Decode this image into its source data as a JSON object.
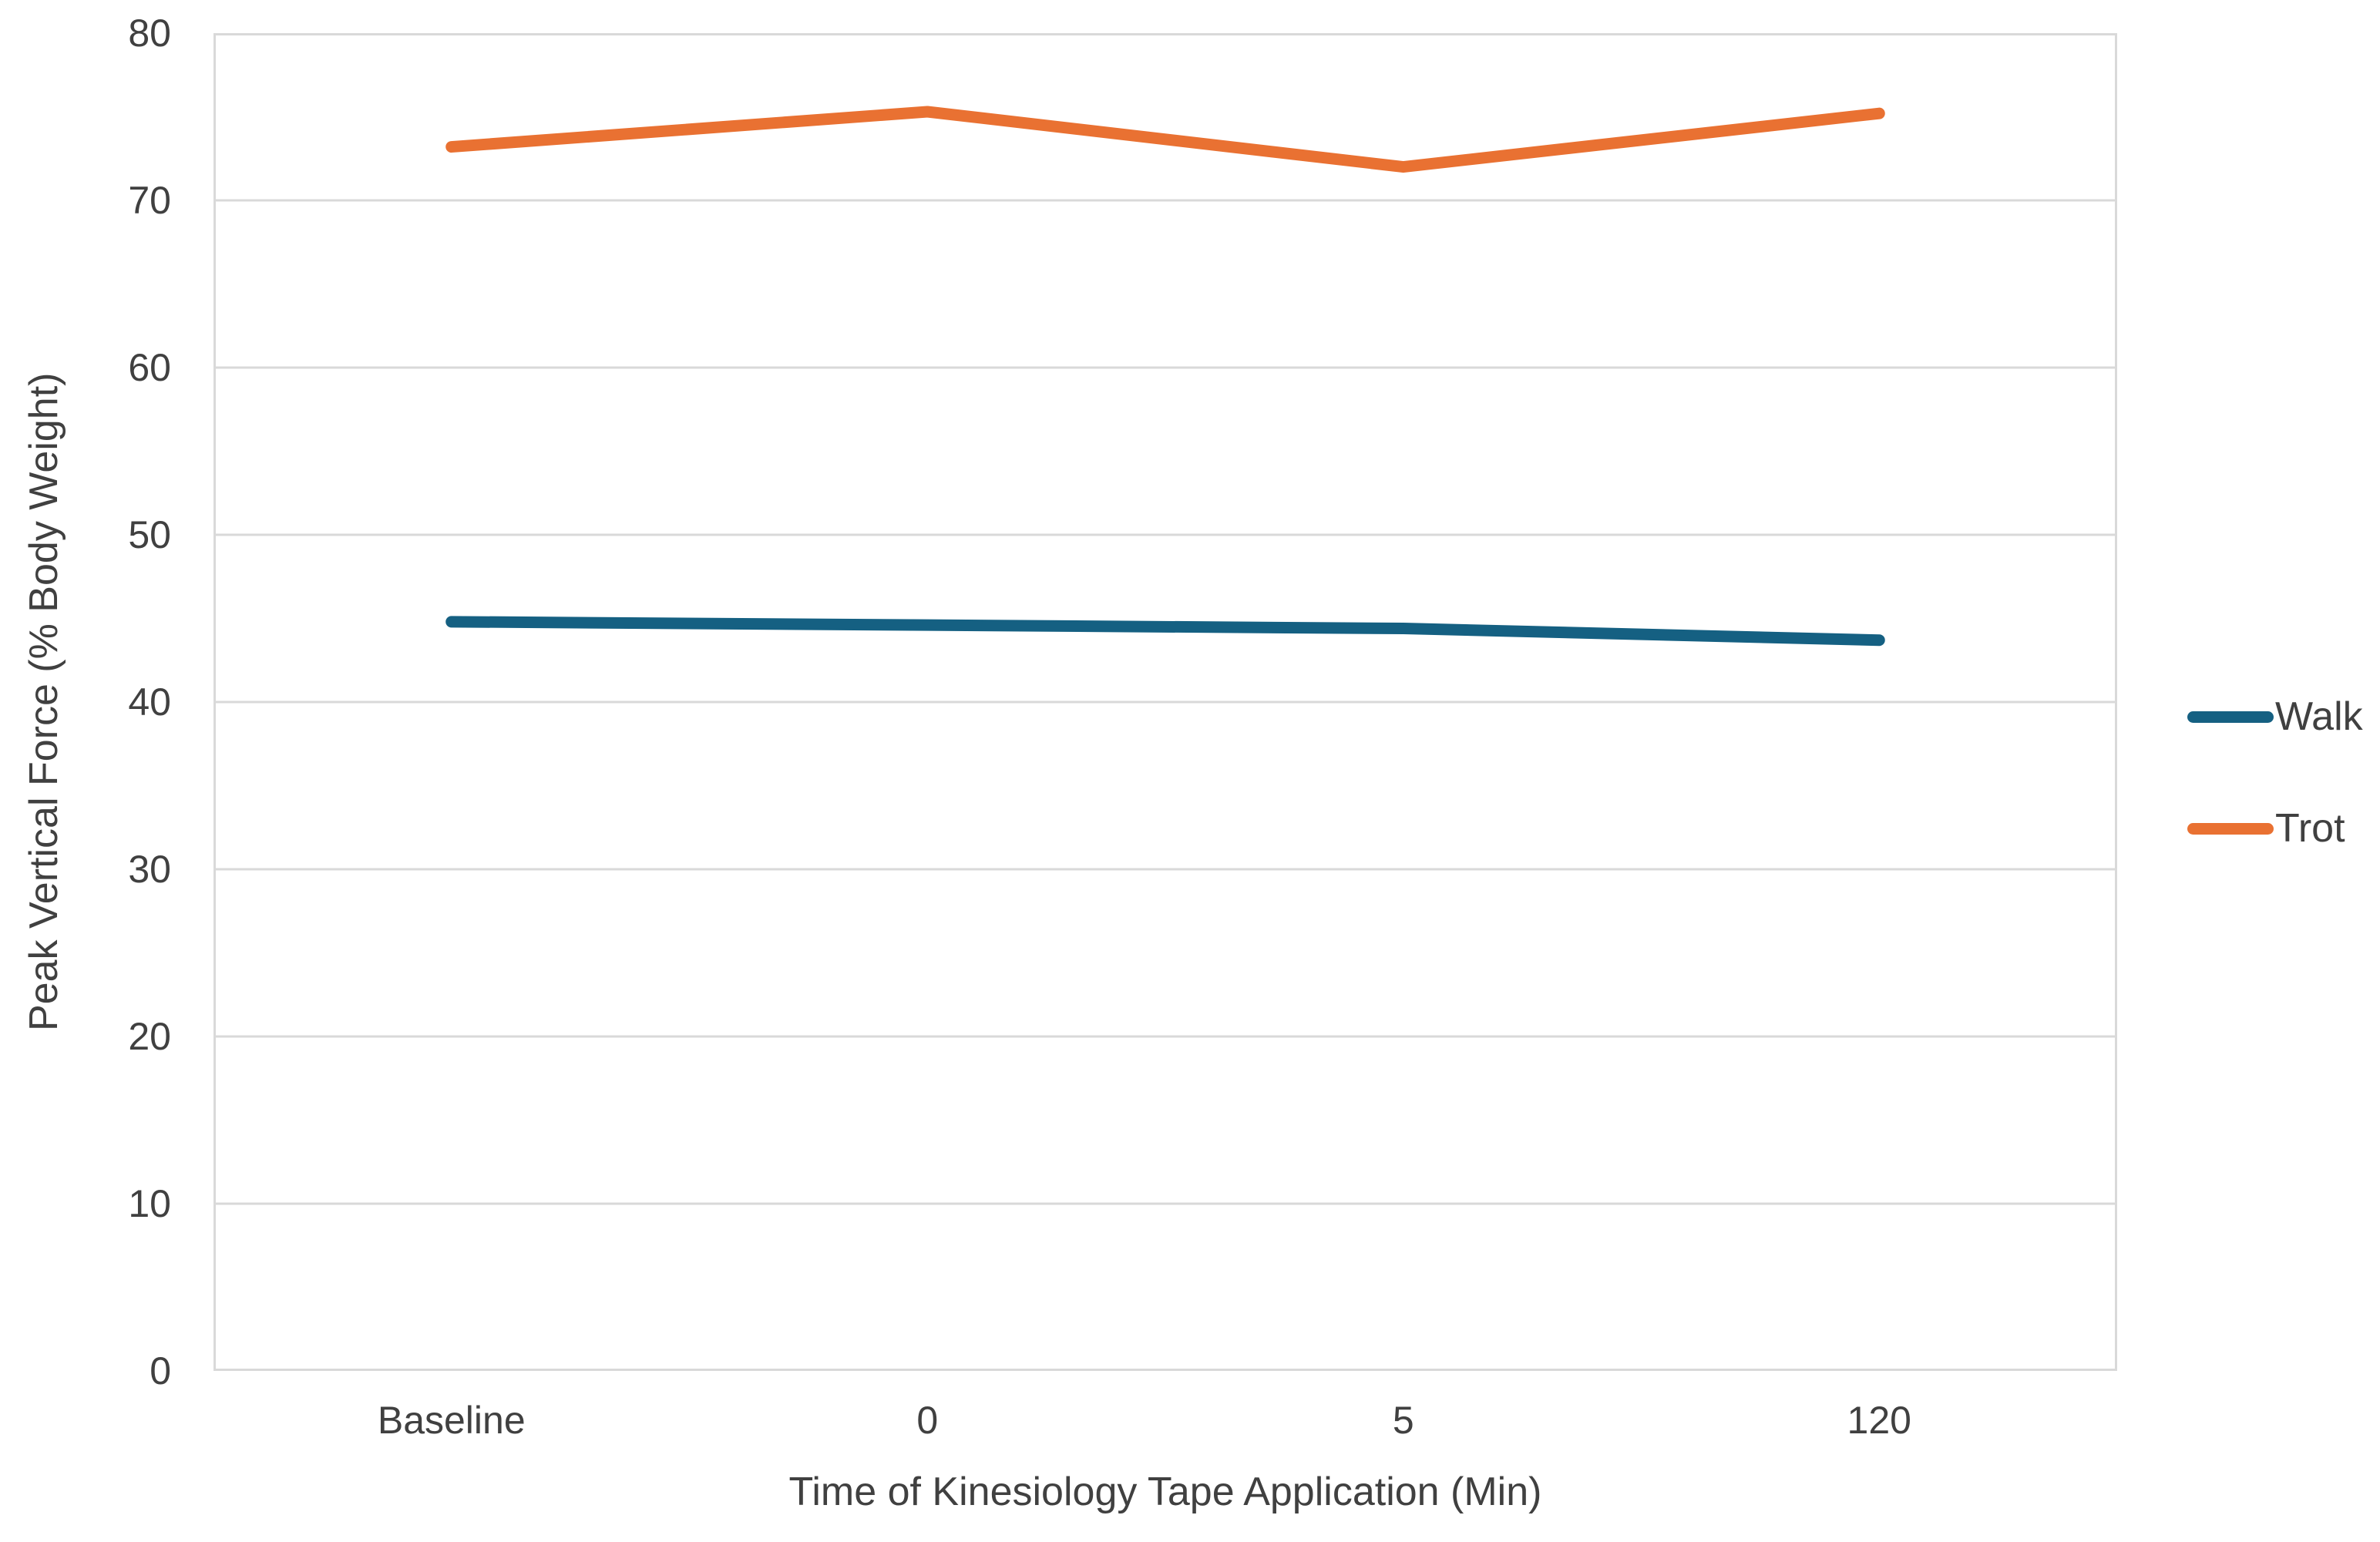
{
  "chart_data": {
    "type": "line",
    "title": "",
    "categories": [
      "Baseline",
      "0",
      "5",
      "120"
    ],
    "x_label": "Time of Kinesiology Tape Application (Min)",
    "y_label": "Peak Vertical Force (% Body Weight)",
    "y_ticks": [
      0,
      10,
      20,
      30,
      40,
      50,
      60,
      70,
      80
    ],
    "ylim": [
      0,
      80
    ],
    "grid": true,
    "legend_position": "right",
    "series": [
      {
        "name": "Walk",
        "color": "#156082",
        "values": [
          44.8,
          44.6,
          44.4,
          43.7
        ]
      },
      {
        "name": "Trot",
        "color": "#E97132",
        "values": [
          73.2,
          75.3,
          72.0,
          75.2
        ]
      }
    ]
  },
  "colors": {
    "gridline": "#D9D9D9",
    "plot_border": "#D9D9D9",
    "axis_text": "#404040"
  }
}
